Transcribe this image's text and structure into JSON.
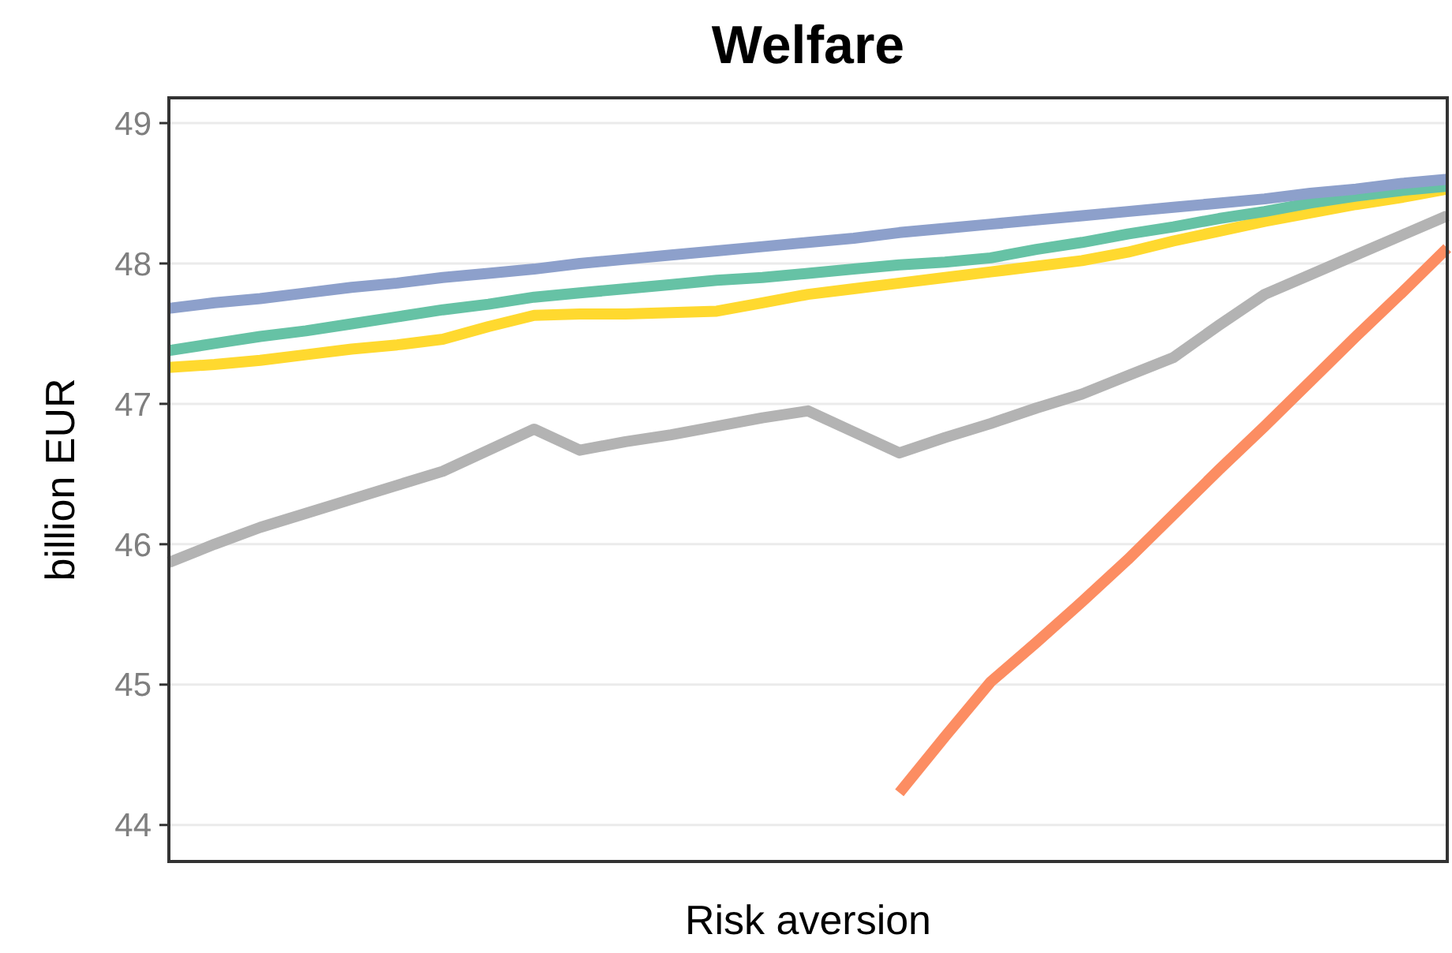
{
  "chart_data": {
    "type": "line",
    "title": "Welfare",
    "xlabel": "Risk aversion",
    "ylabel": "billion EUR",
    "categories": [
      null,
      null,
      null,
      null,
      null,
      null,
      null,
      null,
      null,
      null,
      null,
      null,
      null,
      null,
      null,
      null,
      null,
      null,
      null,
      null,
      null,
      null,
      null,
      null,
      null,
      null,
      null,
      null,
      null
    ],
    "ylim": [
      43.74,
      49.18
    ],
    "yticks": [
      44,
      45,
      46,
      47,
      48,
      49
    ],
    "grid": "y",
    "line_style": "solid",
    "marker": "none",
    "series": [
      {
        "color": "#b3b3b3",
        "values": [
          45.87,
          46.0,
          46.12,
          46.22,
          46.32,
          46.42,
          46.52,
          46.67,
          46.82,
          46.67,
          46.73,
          46.78,
          46.84,
          46.9,
          46.95,
          46.8,
          46.65,
          46.76,
          46.86,
          46.97,
          47.07,
          47.2,
          47.33,
          47.56,
          47.78,
          47.92,
          48.06,
          48.2,
          48.34
        ]
      },
      {
        "color": "#fc8d62",
        "values": [
          null,
          null,
          null,
          null,
          null,
          null,
          null,
          null,
          null,
          null,
          null,
          null,
          null,
          null,
          null,
          null,
          44.23,
          44.63,
          45.02,
          45.3,
          45.59,
          45.89,
          46.21,
          46.53,
          46.84,
          47.16,
          47.48,
          47.79,
          48.11
        ]
      },
      {
        "color": "#ffd92f",
        "values": [
          47.26,
          47.28,
          47.31,
          47.35,
          47.39,
          47.42,
          47.46,
          47.55,
          47.63,
          47.64,
          47.64,
          47.65,
          47.66,
          47.72,
          47.78,
          47.82,
          47.86,
          47.9,
          47.94,
          47.98,
          48.02,
          48.08,
          48.16,
          48.23,
          48.3,
          48.36,
          48.42,
          48.47,
          48.53
        ]
      },
      {
        "color": "#66c2a5",
        "values": [
          47.38,
          47.43,
          47.48,
          47.52,
          47.57,
          47.62,
          47.67,
          47.71,
          47.76,
          47.79,
          47.82,
          47.85,
          47.88,
          47.9,
          47.93,
          47.96,
          47.99,
          48.01,
          48.04,
          48.1,
          48.15,
          48.21,
          48.26,
          48.32,
          48.37,
          48.43,
          48.48,
          48.52,
          48.55
        ]
      },
      {
        "color": "#8da0cb",
        "values": [
          47.68,
          47.72,
          47.75,
          47.79,
          47.83,
          47.86,
          47.9,
          47.93,
          47.96,
          48.0,
          48.03,
          48.06,
          48.09,
          48.12,
          48.15,
          48.18,
          48.22,
          48.25,
          48.28,
          48.31,
          48.34,
          48.37,
          48.4,
          48.43,
          48.46,
          48.5,
          48.53,
          48.57,
          48.6
        ]
      }
    ]
  }
}
